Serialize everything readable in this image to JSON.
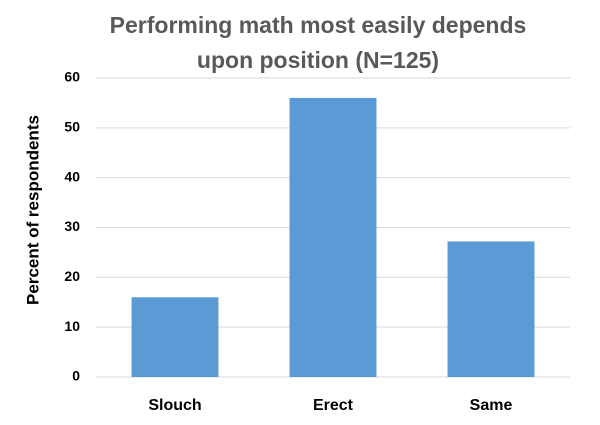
{
  "chart_data": {
    "type": "bar",
    "title": "Performing math most easily depends upon position (N=125)",
    "y_label": "Percent of respondents",
    "categories": [
      "Slouch",
      "Erect",
      "Same"
    ],
    "values": [
      16,
      56,
      27.2
    ],
    "color": "#5b9bd5",
    "ylim": [
      0,
      60
    ],
    "yticks": [
      0,
      10,
      20,
      30,
      40,
      50,
      60
    ],
    "grid": true
  }
}
